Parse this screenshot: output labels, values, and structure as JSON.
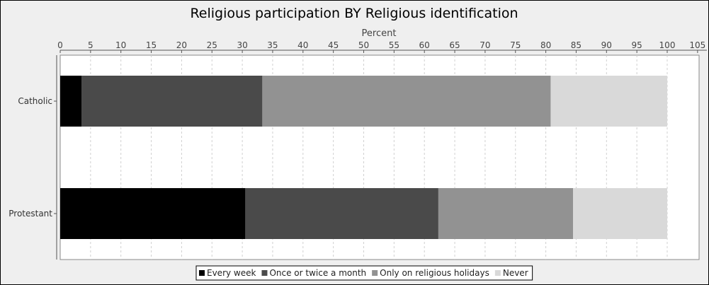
{
  "chart_data": {
    "type": "bar",
    "orientation": "horizontal",
    "stacked": true,
    "title": "Religious participation BY Religious identification",
    "xlabel": "Percent",
    "ylabel": "",
    "xlim": [
      0,
      105
    ],
    "x_ticks": [
      0,
      5,
      10,
      15,
      20,
      25,
      30,
      35,
      40,
      45,
      50,
      55,
      60,
      65,
      70,
      75,
      80,
      85,
      90,
      95,
      100,
      105
    ],
    "axis_position": "top",
    "grid": true,
    "legend_position": "bottom",
    "categories": [
      "Catholic",
      "Protestant"
    ],
    "series": [
      {
        "name": "Every week",
        "color": "#000000",
        "values": [
          3.5,
          30.5
        ]
      },
      {
        "name": "Once or twice a month",
        "color": "#4a4a4a",
        "values": [
          29.8,
          31.8
        ]
      },
      {
        "name": "Only on religious holidays",
        "color": "#929292",
        "values": [
          47.5,
          22.2
        ]
      },
      {
        "name": "Never",
        "color": "#d9d9d9",
        "values": [
          19.2,
          15.5
        ]
      }
    ]
  }
}
